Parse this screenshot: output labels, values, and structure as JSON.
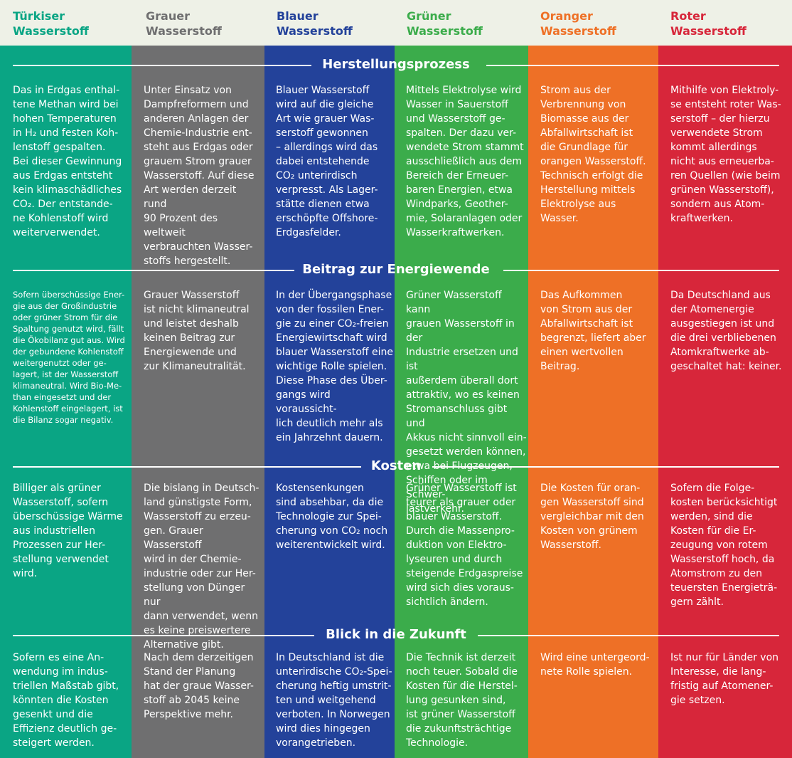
{
  "colors": {
    "tuerkis": "#00a88a",
    "grau": "#6f6f70",
    "blau": "#23429a",
    "gruen": "#3bac4b",
    "orange": "#ee7026",
    "rot": "#d7263a",
    "header_bg": "#eef1e7"
  },
  "columns": [
    {
      "title": "Türkiser\nWasserstoff",
      "color": "#0aa584"
    },
    {
      "title": "Grauer\nWasserstoff",
      "color": "#6f6f70"
    },
    {
      "title": "Blauer\nWasserstoff",
      "color": "#23429a"
    },
    {
      "title": "Grüner\nWasserstoff",
      "color": "#3bac4b"
    },
    {
      "title": "Oranger\nWasserstoff",
      "color": "#ee7026"
    },
    {
      "title": "Roter\nWasserstoff",
      "color": "#d7263a"
    }
  ],
  "sections": [
    {
      "title": "Herstellungsprozess",
      "cells": [
        "Das in Erdgas enthal-\ntene Methan wird bei\nhohen Temperaturen\nin H₂ und festen Koh-\nlenstoff gespalten.\nBei dieser Gewinnung\naus Erdgas entsteht\nkein klimaschädliches\nCO₂. Der entstande-\nne Kohlenstoff wird\nweiterverwendet.",
        "Unter Einsatz von\nDampfreformern und\nanderen Anlagen der\nChemie-Industrie ent-\nsteht aus Erdgas oder\ngrauem Strom grauer\nWasserstoff. Auf diese\nArt werden derzeit rund\n90 Prozent des weltweit\nverbrauchten Wasser-\nstoffs hergestellt.",
        "Blauer Wasserstoff\nwird auf die gleiche\nArt wie grauer Was-\nserstoff gewonnen\n– allerdings wird das\ndabei entstehende\nCO₂ unterirdisch\nverpresst. Als Lager-\nstätte dienen etwa\nerschöpfte Offshore-\nErdgasfelder.",
        "Mittels Elektrolyse wird\nWasser in Sauerstoff\nund Wasserstoff ge-\nspalten. Der dazu ver-\nwendete Strom stammt\nausschließlich aus dem\nBereich der Erneuer-\nbaren Energien, etwa\nWindparks, Geother-\nmie, Solaranlagen oder\nWasserkraftwerken.",
        "Strom aus der\nVerbrennung von\nBiomasse aus der\nAbfallwirtschaft ist\ndie Grundlage für\norangen Wasserstoff.\nTechnisch erfolgt die\nHerstellung mittels\nElektrolyse aus\nWasser.",
        "Mithilfe von Elektroly-\nse entsteht roter Was-\nserstoff – der hierzu\nverwendete Strom\nkommt allerdings\nnicht aus erneuerba-\nren Quellen (wie beim\ngrünen Wasserstoff),\nsondern aus Atom-\nkraftwerken."
      ]
    },
    {
      "title": "Beitrag zur Energiewende",
      "cells": [
        "Sofern überschüssige Ener-\ngie aus der Großindustrie\noder grüner Strom für die\nSpaltung genutzt wird, fällt\ndie Ökobilanz gut aus. Wird\nder gebundene Kohlenstoff\nweitergenutzt oder ge-\nlagert, ist der Wasserstoff\nklimaneutral. Wird Bio-Me-\nthan eingesetzt und der\nKohlenstoff eingelagert, ist\ndie Bilanz sogar negativ.",
        "Grauer Wasserstoff\nist nicht klimaneutral\nund leistet deshalb\nkeinen Beitrag zur\nEnergiewende und\nzur Klimaneutralität.",
        "In der Übergangsphase\nvon der fossilen Ener-\ngie zu einer CO₂-freien\nEnergiewirtschaft wird\nblauer Wasserstoff eine\nwichtige Rolle spielen.\nDiese Phase des Über-\ngangs wird voraussicht-\nlich deutlich mehr als\nein Jahrzehnt dauern.",
        "Grüner Wasserstoff kann\ngrauen Wasserstoff in der\nIndustrie ersetzen und ist\naußerdem überall dort\nattraktiv, wo es keinen\nStromanschluss gibt und\nAkkus nicht sinnvoll ein-\ngesetzt werden können,\netwa bei Flugzeugen,\nSchiffen oder im Schwer-\nlastverkehr.",
        "Das Aufkommen\nvon Strom aus der\nAbfallwirtschaft ist\nbegrenzt, liefert aber\neinen wertvollen\nBeitrag.",
        "Da Deutschland aus\nder Atomenergie\nausgestiegen ist und\ndie drei verbliebenen\nAtomkraftwerke ab-\ngeschaltet hat: keiner."
      ]
    },
    {
      "title": "Kosten",
      "cells": [
        "Billiger als grüner\nWasserstoff, sofern\nüberschüssige Wärme\naus industriellen\nProzessen zur Her-\nstellung verwendet\nwird.",
        "Die bislang in Deutsch-\nland günstigste Form,\nWasserstoff zu erzeu-\ngen. Grauer Wasserstoff\nwird in der Chemie-\nindustrie oder zur Her-\nstellung von Dünger nur\ndann verwendet, wenn\nes keine preiswertere\nAlternative gibt.",
        "Kostensenkungen\nsind absehbar, da die\nTechnologie zur Spei-\ncherung von CO₂ noch\nweiterentwickelt wird.",
        "Grüner Wasserstoff ist\nteurer als grauer oder\nblauer Wasserstoff.\nDurch die Massenpro-\nduktion von Elektro-\nlyseuren und durch\nsteigende Erdgaspreise\nwird sich dies voraus-\nsichtlich ändern.",
        "Die Kosten für oran-\ngen Wasserstoff sind\nvergleichbar mit den\nKosten von grünem\nWasserstoff.",
        "Sofern die Folge-\nkosten berücksichtigt\nwerden, sind die\nKosten für die Er-\nzeugung von rotem\nWasserstoff hoch, da\nAtomstrom zu den\nteuersten Energieträ-\ngern zählt."
      ]
    },
    {
      "title": "Blick in die Zukunft",
      "cells": [
        "Sofern es eine An-\nwendung im indus-\ntriellen Maßstab gibt,\nkönnten die Kosten\ngesenkt und die\nEffizienz deutlich ge-\nsteigert werden.",
        "Nach dem derzeitigen\nStand der Planung\nhat der graue Wasser-\nstoff ab 2045 keine\nPerspektive mehr.",
        "In Deutschland ist die\nunterirdische CO₂-Spei-\ncherung heftig umstrit-\nten und weitgehend\nverboten. In Norwegen\nwird dies hingegen\nvorangetrieben.",
        "Die Technik ist derzeit\nnoch teuer. Sobald die\nKosten für die Herstel-\nlung gesunken sind,\nist grüner Wasserstoff\ndie zukunftsträchtige\nTechnologie.",
        "Wird eine untergeord-\nnete Rolle spielen.",
        "Ist nur für Länder von\nInteresse, die lang-\nfristig auf Atomener-\ngie setzen."
      ]
    }
  ]
}
